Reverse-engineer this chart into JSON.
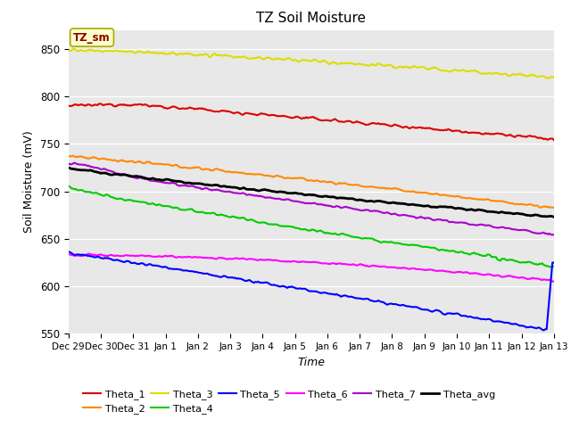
{
  "title": "TZ Soil Moisture",
  "xlabel": "Time",
  "ylabel": "Soil Moisture (mV)",
  "ylim": [
    550,
    870
  ],
  "fig_bg": "#ffffff",
  "plot_bg": "#e8e8e8",
  "annotation_text": "TZ_sm",
  "annotation_color": "#8b0000",
  "annotation_bg": "#ffffcc",
  "annotation_edge": "#aaaa00",
  "x_tick_labels": [
    "Dec 29",
    "Dec 30",
    "Dec 31",
    "Jan 1",
    "Jan 2",
    "Jan 3",
    "Jan 4",
    "Jan 5",
    "Jan 6",
    "Jan 7",
    "Jan 8",
    "Jan 9",
    "Jan 10",
    "Jan 11",
    "Jan 12",
    "Jan 13"
  ],
  "y_ticks": [
    550,
    600,
    650,
    700,
    750,
    800,
    850
  ],
  "num_points": 336,
  "series_order": [
    "Theta_3",
    "Theta_1",
    "Theta_2",
    "Theta_7",
    "Theta_avg",
    "Theta_4",
    "Theta_6",
    "Theta_5"
  ],
  "series": {
    "Theta_1": {
      "color": "#dd0000",
      "lw": 1.5
    },
    "Theta_2": {
      "color": "#ff8800",
      "lw": 1.5
    },
    "Theta_3": {
      "color": "#dddd00",
      "lw": 1.5
    },
    "Theta_4": {
      "color": "#00cc00",
      "lw": 1.5
    },
    "Theta_5": {
      "color": "#0000ff",
      "lw": 1.5
    },
    "Theta_6": {
      "color": "#ff00ff",
      "lw": 1.5
    },
    "Theta_7": {
      "color": "#aa00cc",
      "lw": 1.5
    },
    "Theta_avg": {
      "color": "#000000",
      "lw": 2.0
    }
  },
  "legend_order": [
    "Theta_1",
    "Theta_2",
    "Theta_3",
    "Theta_4",
    "Theta_5",
    "Theta_6",
    "Theta_7",
    "Theta_avg"
  ]
}
